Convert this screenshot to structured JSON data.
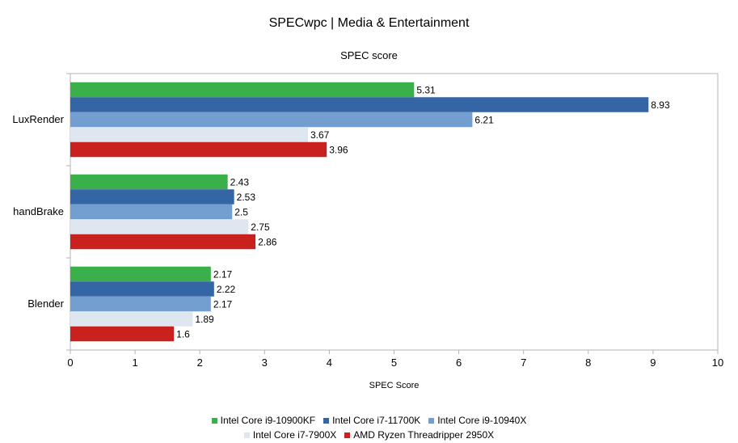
{
  "chart_data": {
    "type": "bar",
    "orientation": "horizontal",
    "title": "SPECwpc | Media & Entertainment",
    "subtitle": "SPEC score",
    "xlabel": "SPEC Score",
    "ylabel": "",
    "xlim": [
      0,
      10
    ],
    "xticks": [
      "0",
      "1",
      "2",
      "3",
      "4",
      "5",
      "6",
      "7",
      "8",
      "9",
      "10"
    ],
    "categories": [
      "LuxRender",
      "handBrake",
      "Blender"
    ],
    "grid": false,
    "legend_position": "bottom",
    "series": [
      {
        "name": "Intel Core i9-10900KF",
        "color": "#3ab04a",
        "values": [
          5.31,
          2.43,
          2.17
        ],
        "labels": [
          "5.31",
          "2.43",
          "2.17"
        ]
      },
      {
        "name": "Intel Core i7-11700K",
        "color": "#3465a4",
        "values": [
          8.93,
          2.53,
          2.22
        ],
        "labels": [
          "8.93",
          "2.53",
          "2.22"
        ]
      },
      {
        "name": "Intel Core i9-10940X",
        "color": "#729fcf",
        "values": [
          6.21,
          2.5,
          2.17
        ],
        "labels": [
          "6.21",
          "2.5",
          "2.17"
        ]
      },
      {
        "name": "Intel Core i7-7900X",
        "color": "#dee6ef",
        "values": [
          3.67,
          2.75,
          1.89
        ],
        "labels": [
          "3.67",
          "2.75",
          "1.89"
        ]
      },
      {
        "name": "AMD Ryzen Threadripper 2950X",
        "color": "#c9211e",
        "values": [
          3.96,
          2.86,
          1.6
        ],
        "labels": [
          "3.96",
          "2.86",
          "1.6"
        ]
      }
    ]
  }
}
